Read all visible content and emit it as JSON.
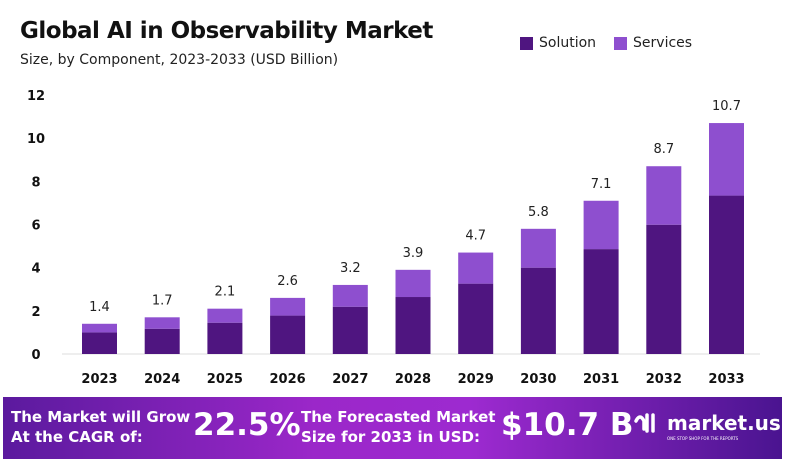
{
  "chart_data": {
    "type": "bar",
    "stacked": true,
    "title": "Global AI in Observability Market",
    "subtitle": "Size, by Component, 2023-2033 (USD Billion)",
    "categories": [
      "2023",
      "2024",
      "2025",
      "2026",
      "2027",
      "2028",
      "2029",
      "2030",
      "2031",
      "2032",
      "2033"
    ],
    "series": [
      {
        "name": "Solution",
        "color": "#4f1580",
        "values": [
          1.0,
          1.17,
          1.45,
          1.78,
          2.19,
          2.64,
          3.26,
          4.0,
          4.86,
          5.99,
          7.34
        ]
      },
      {
        "name": "Services",
        "color": "#8e4fcf",
        "values": [
          0.4,
          0.53,
          0.65,
          0.82,
          1.01,
          1.26,
          1.44,
          1.8,
          2.24,
          2.71,
          3.36
        ]
      }
    ],
    "totals": [
      "1.4",
      "1.7",
      "2.1",
      "2.6",
      "3.2",
      "3.9",
      "4.7",
      "5.8",
      "7.1",
      "8.7",
      "10.7"
    ],
    "yticks": [
      "0",
      "2",
      "4",
      "6",
      "8",
      "10",
      "12"
    ],
    "ylim": [
      0,
      12
    ],
    "grid": false,
    "legend": "top-right"
  },
  "footer": {
    "cagr_text_1": "The Market will Grow",
    "cagr_text_2": "At the CAGR of:",
    "cagr_value": "22.5%",
    "forecast_text_1": "The Forecasted Market",
    "forecast_text_2": "Size for 2033 in USD:",
    "forecast_value": "$10.7 B",
    "logo_text": "market.us",
    "logo_tagline": "ONE STOP SHOP FOR THE REPORTS"
  }
}
